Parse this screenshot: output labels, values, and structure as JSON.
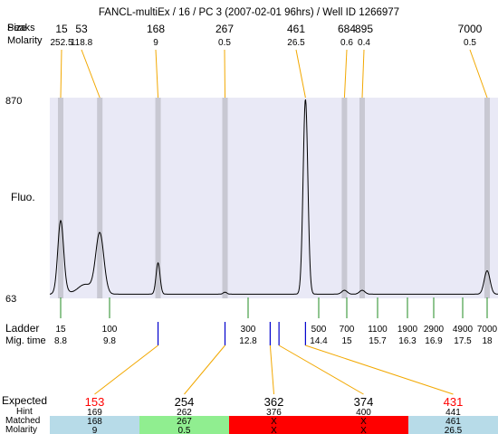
{
  "header": {
    "title": "FANCL-multiEx / 16 / PC 3 (2007-02-01 96hrs) / Well ID 1266977"
  },
  "labels": {
    "size_label_a": "Size",
    "size_label_b": "Peaks",
    "molarity": "Molarity",
    "fluo": "Fluo.",
    "ladder": "Ladder",
    "mig_time": "Mig. time",
    "expected": "Expected",
    "hint": "Hint",
    "matched": "Matched",
    "molarity_bottom": "Molarity"
  },
  "colors": {
    "plot_background": "#e9e9f6",
    "lane_band": "#c8c8d2",
    "connector": "#f2a800",
    "ladder_tick": "#228b22",
    "sample_tick": "#0000cc",
    "expected_red": "#ff0000",
    "cell_blue": "#b7dbe8",
    "cell_green": "#90ee90",
    "cell_red": "#ff0000"
  },
  "chart_data": {
    "type": "line",
    "title": "FANCL-multiEx / 16 / PC 3 (2007-02-01 96hrs) / Well ID 1266977",
    "ylabel": "Fluo.",
    "ylim": [
      63,
      870
    ],
    "y_tick_labels": [
      "870",
      "63"
    ],
    "peaks": [
      {
        "size": "15",
        "molarity": "252.5",
        "time": 8.8,
        "height": 0.36
      },
      {
        "size": "53",
        "molarity": "118.8",
        "time": 9.6,
        "height": 0.31
      },
      {
        "size": "168",
        "molarity": "9",
        "time": 10.85,
        "height": 0.16
      },
      {
        "size": "267",
        "molarity": "0.5",
        "time": 12.3,
        "height": 0.01
      },
      {
        "size": "461",
        "molarity": "26.5",
        "time": 14.1,
        "height": 1.0
      },
      {
        "size": "684",
        "molarity": "0.6",
        "time": 14.95,
        "height": 0.02
      },
      {
        "size": "895",
        "molarity": "0.4",
        "time": 15.35,
        "height": 0.02
      },
      {
        "size": "7000",
        "molarity": "0.5",
        "time": 18.0,
        "height": 0.12
      }
    ],
    "ladder": [
      {
        "size": "15",
        "time": "8.8"
      },
      {
        "size": "100",
        "time": "9.8"
      },
      {
        "size": "300",
        "time": "12.8"
      },
      {
        "size": "500",
        "time": "14.4"
      },
      {
        "size": "700",
        "time": "15"
      },
      {
        "size": "1100",
        "time": "15.7"
      },
      {
        "size": "1900",
        "time": "16.3"
      },
      {
        "size": "2900",
        "time": "16.9"
      },
      {
        "size": "4900",
        "time": "17.5"
      },
      {
        "size": "7000",
        "time": "18"
      }
    ],
    "table": [
      {
        "expected": "153",
        "expected_red": true,
        "hint": "169",
        "matched": "168",
        "molarity": "9",
        "status": "blue",
        "sample_time": 10.85
      },
      {
        "expected": "254",
        "expected_red": false,
        "hint": "262",
        "matched": "267",
        "molarity": "0.5",
        "status": "green",
        "sample_time": 12.3
      },
      {
        "expected": "362",
        "expected_red": false,
        "hint": "376",
        "matched": "X",
        "molarity": "X",
        "status": "red",
        "sample_time": 13.3
      },
      {
        "expected": "374",
        "expected_red": false,
        "hint": "400",
        "matched": "X",
        "molarity": "X",
        "status": "red",
        "sample_time": 13.5
      },
      {
        "expected": "431",
        "expected_red": true,
        "hint": "441",
        "matched": "461",
        "molarity": "26.5",
        "status": "blue",
        "sample_time": 14.1
      }
    ]
  }
}
